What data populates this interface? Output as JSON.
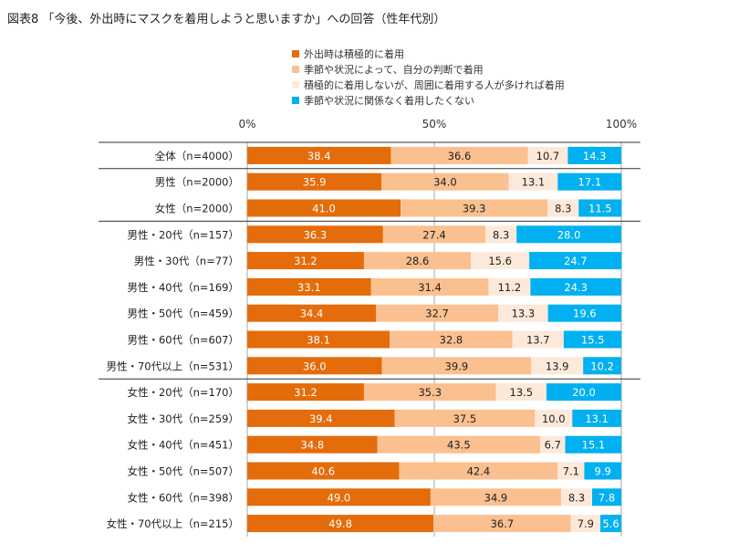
{
  "chart_data": {
    "type": "bar",
    "orientation": "horizontal",
    "stacked": true,
    "title": "図表8 「今後、外出時にマスクを着用しようと思いますか」への回答（性年代別）",
    "x_ticks": [
      "0%",
      "50%",
      "100%"
    ],
    "xlim": [
      0,
      100
    ],
    "legend_position": "top",
    "categories": [
      "全体（n=4000）",
      "男性（n=2000）",
      "女性（n=2000）",
      "男性・20代（n=157）",
      "男性・30代（n=77）",
      "男性・40代（n=169）",
      "男性・50代（n=459）",
      "男性・60代（n=607）",
      "男性・70代以上（n=531）",
      "女性・20代（n=170）",
      "女性・30代（n=259）",
      "女性・40代（n=451）",
      "女性・50代（n=507）",
      "女性・60代（n=398）",
      "女性・70代以上（n=215）"
    ],
    "group_separators_after": [
      0,
      2,
      8
    ],
    "series": [
      {
        "name": "外出時は積極的に着用",
        "color": "#e46c0a",
        "label_color": "#ffffff",
        "values": [
          38.4,
          35.9,
          41.0,
          36.3,
          31.2,
          33.1,
          34.4,
          38.1,
          36.0,
          31.2,
          39.4,
          34.8,
          40.6,
          49.0,
          49.8
        ]
      },
      {
        "name": "季節や状況によって、自分の判断で着用",
        "color": "#fac090",
        "label_color": "#222222",
        "values": [
          36.6,
          34.0,
          39.3,
          27.4,
          28.6,
          31.4,
          32.7,
          32.8,
          39.9,
          35.3,
          37.5,
          43.5,
          42.4,
          34.9,
          36.7
        ]
      },
      {
        "name": "積極的に着用しないが、周囲に着用する人が多ければ着用",
        "color": "#fde9d9",
        "label_color": "#222222",
        "values": [
          10.7,
          13.1,
          8.3,
          8.3,
          15.6,
          11.2,
          13.3,
          13.7,
          13.9,
          13.5,
          10.0,
          6.7,
          7.1,
          8.3,
          7.9
        ]
      },
      {
        "name": "季節や状況に関係なく着用したくない",
        "color": "#00b0f0",
        "label_color": "#ffffff",
        "values": [
          14.3,
          17.1,
          11.5,
          28.0,
          24.7,
          24.3,
          19.6,
          15.5,
          10.2,
          20.0,
          13.1,
          15.1,
          9.9,
          7.8,
          5.6
        ]
      }
    ]
  }
}
